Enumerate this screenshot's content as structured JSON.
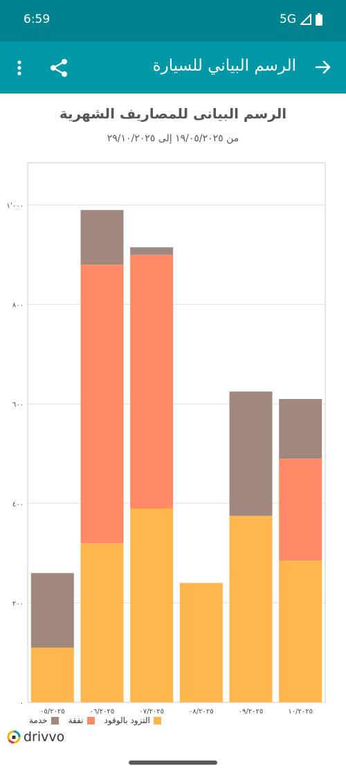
{
  "status_bar": {
    "time": "6:59",
    "network": "5G"
  },
  "app_bar": {
    "title": "الرسم البياني للسيارة"
  },
  "icons": {
    "back": "arrow-forward-icon",
    "share": "share-icon",
    "more": "more-vert-icon",
    "brand": "drivvo-logo-icon"
  },
  "colors": {
    "status_bar": "#00838f",
    "app_bar": "#0097a7",
    "fuel": "#ffb74d",
    "expense": "#ff8a65",
    "service": "#a1887f"
  },
  "chart_data": {
    "type": "bar",
    "stacked": true,
    "title": "الرسم البيانى للمصاريف الشهرية",
    "subtitle": "من ١٩/٠٥/٢٠٢٥ إلى ٢٩/١٠/٢٠٢٥",
    "categories": [
      "٠٥/٢٠٢٥",
      "٠٦/٢٠٢٥",
      "٠٧/٢٠٢٥",
      "٠٨/٢٠٢٥",
      "٠٩/٢٠٢٥",
      "١٠/٢٠٢٥"
    ],
    "series": [
      {
        "name": "التزود بالوقود",
        "color": "#ffb74d",
        "values": [
          110,
          320,
          390,
          240,
          375,
          285
        ]
      },
      {
        "name": "نفقة",
        "color": "#ff8a65",
        "values": [
          0,
          560,
          510,
          0,
          0,
          205
        ]
      },
      {
        "name": "خدمة",
        "color": "#a1887f",
        "values": [
          150,
          110,
          15,
          0,
          250,
          120
        ]
      }
    ],
    "yticks": [
      {
        "value": 0,
        "label": "٠"
      },
      {
        "value": 200,
        "label": "٢٠٠"
      },
      {
        "value": 400,
        "label": "٤٠٠"
      },
      {
        "value": 600,
        "label": "٦٠٠"
      },
      {
        "value": 800,
        "label": "٨٠٠"
      },
      {
        "value": 1000,
        "label": "١٬٠٠٠"
      }
    ],
    "ylim": [
      0,
      1085
    ],
    "grid": true,
    "legend_position": "bottom-left"
  },
  "brand": {
    "name": "drivvo"
  }
}
